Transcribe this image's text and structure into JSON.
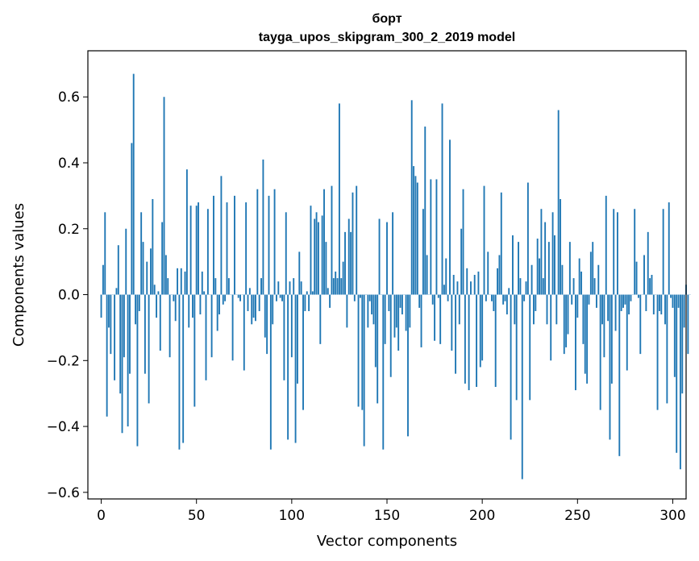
{
  "chart_data": {
    "type": "bar",
    "title": "борт",
    "subtitle": "tayga_upos_skipgram_300_2_2019 model",
    "xlabel": "Vector components",
    "ylabel": "Components values",
    "xlim": [
      -7,
      307
    ],
    "ylim": [
      -0.62,
      0.74
    ],
    "xticks": [
      0,
      50,
      100,
      150,
      200,
      250,
      300
    ],
    "xtick_labels": [
      "0",
      "50",
      "100",
      "150",
      "200",
      "250",
      "300"
    ],
    "yticks": [
      -0.6,
      -0.4,
      -0.2,
      0.0,
      0.2,
      0.4,
      0.6
    ],
    "ytick_labels": [
      "−0.6",
      "−0.4",
      "−0.2",
      "0.0",
      "0.2",
      "0.4",
      "0.6"
    ],
    "grid": false,
    "bar_color": "#1f77b4",
    "values": [
      -0.07,
      0.09,
      0.25,
      -0.37,
      -0.1,
      -0.18,
      0.0,
      -0.26,
      0.02,
      0.15,
      -0.3,
      -0.42,
      -0.19,
      0.2,
      -0.4,
      -0.24,
      0.46,
      0.67,
      -0.09,
      -0.46,
      -0.05,
      0.25,
      0.16,
      -0.24,
      0.1,
      -0.33,
      0.14,
      0.29,
      0.03,
      -0.07,
      0.01,
      -0.17,
      0.22,
      0.6,
      0.12,
      0.05,
      -0.19,
      0.0,
      -0.02,
      -0.08,
      0.08,
      -0.47,
      0.08,
      -0.45,
      0.07,
      0.38,
      -0.1,
      0.27,
      -0.07,
      -0.34,
      0.27,
      0.28,
      -0.06,
      0.07,
      0.01,
      -0.26,
      0.26,
      0.0,
      -0.19,
      0.3,
      0.05,
      -0.11,
      -0.06,
      0.36,
      -0.03,
      -0.02,
      0.28,
      0.05,
      0.0,
      -0.2,
      0.3,
      0.0,
      -0.01,
      -0.02,
      0.0,
      -0.23,
      0.28,
      -0.05,
      0.02,
      -0.09,
      -0.07,
      -0.08,
      0.32,
      -0.05,
      0.05,
      0.41,
      -0.13,
      -0.18,
      0.3,
      -0.47,
      -0.09,
      0.32,
      -0.02,
      0.04,
      -0.01,
      -0.02,
      -0.26,
      0.25,
      -0.44,
      0.04,
      -0.19,
      0.05,
      -0.45,
      -0.27,
      0.13,
      0.04,
      -0.35,
      -0.05,
      0.01,
      -0.05,
      0.27,
      0.01,
      0.23,
      0.25,
      0.22,
      -0.15,
      0.24,
      0.32,
      0.16,
      0.02,
      -0.04,
      0.33,
      0.05,
      0.07,
      0.05,
      0.58,
      0.05,
      0.1,
      0.19,
      -0.1,
      0.23,
      0.19,
      0.31,
      -0.02,
      0.33,
      -0.34,
      -0.01,
      -0.35,
      -0.46,
      0.0,
      -0.1,
      -0.02,
      -0.06,
      -0.09,
      -0.22,
      -0.33,
      0.23,
      0.0,
      -0.47,
      -0.15,
      0.22,
      -0.05,
      -0.25,
      0.25,
      -0.13,
      -0.1,
      -0.17,
      -0.04,
      -0.06,
      0.0,
      -0.11,
      -0.43,
      -0.1,
      0.59,
      0.39,
      0.36,
      0.34,
      -0.04,
      -0.16,
      0.26,
      0.51,
      0.12,
      0.0,
      0.35,
      -0.03,
      -0.14,
      0.35,
      -0.01,
      -0.15,
      0.58,
      0.03,
      0.11,
      -0.02,
      0.47,
      -0.17,
      0.06,
      -0.24,
      0.04,
      -0.09,
      0.2,
      0.32,
      -0.27,
      0.08,
      -0.29,
      0.04,
      0.0,
      0.06,
      -0.28,
      0.07,
      -0.22,
      -0.2,
      0.33,
      -0.02,
      0.13,
      0.0,
      -0.02,
      -0.05,
      -0.28,
      0.08,
      0.12,
      0.31,
      -0.03,
      -0.02,
      -0.06,
      0.02,
      -0.44,
      0.18,
      -0.09,
      -0.32,
      0.16,
      0.05,
      -0.56,
      -0.02,
      0.04,
      0.34,
      -0.32,
      0.09,
      -0.09,
      -0.05,
      0.17,
      0.11,
      0.26,
      0.05,
      0.22,
      -0.09,
      0.16,
      -0.2,
      0.25,
      0.18,
      -0.09,
      0.56,
      0.29,
      0.09,
      -0.18,
      -0.16,
      -0.12,
      0.16,
      -0.03,
      0.05,
      -0.29,
      -0.07,
      0.11,
      0.07,
      -0.15,
      -0.24,
      -0.27,
      -0.03,
      0.13,
      0.16,
      0.05,
      -0.04,
      0.09,
      -0.35,
      -0.09,
      -0.19,
      0.3,
      -0.08,
      -0.44,
      -0.27,
      0.26,
      -0.11,
      0.25,
      -0.49,
      -0.05,
      -0.04,
      -0.03,
      -0.23,
      -0.06,
      -0.02,
      0.0,
      0.26,
      0.1,
      -0.01,
      -0.18,
      0.0,
      0.12,
      -0.05,
      0.19,
      0.05,
      0.06,
      -0.06,
      0.0,
      -0.35,
      -0.05,
      -0.06,
      0.26,
      -0.09,
      -0.33,
      0.28,
      -0.01,
      -0.04,
      -0.25,
      -0.48,
      -0.04,
      -0.53,
      -0.3,
      -0.1,
      0.03,
      -0.18,
      0.0
    ]
  }
}
